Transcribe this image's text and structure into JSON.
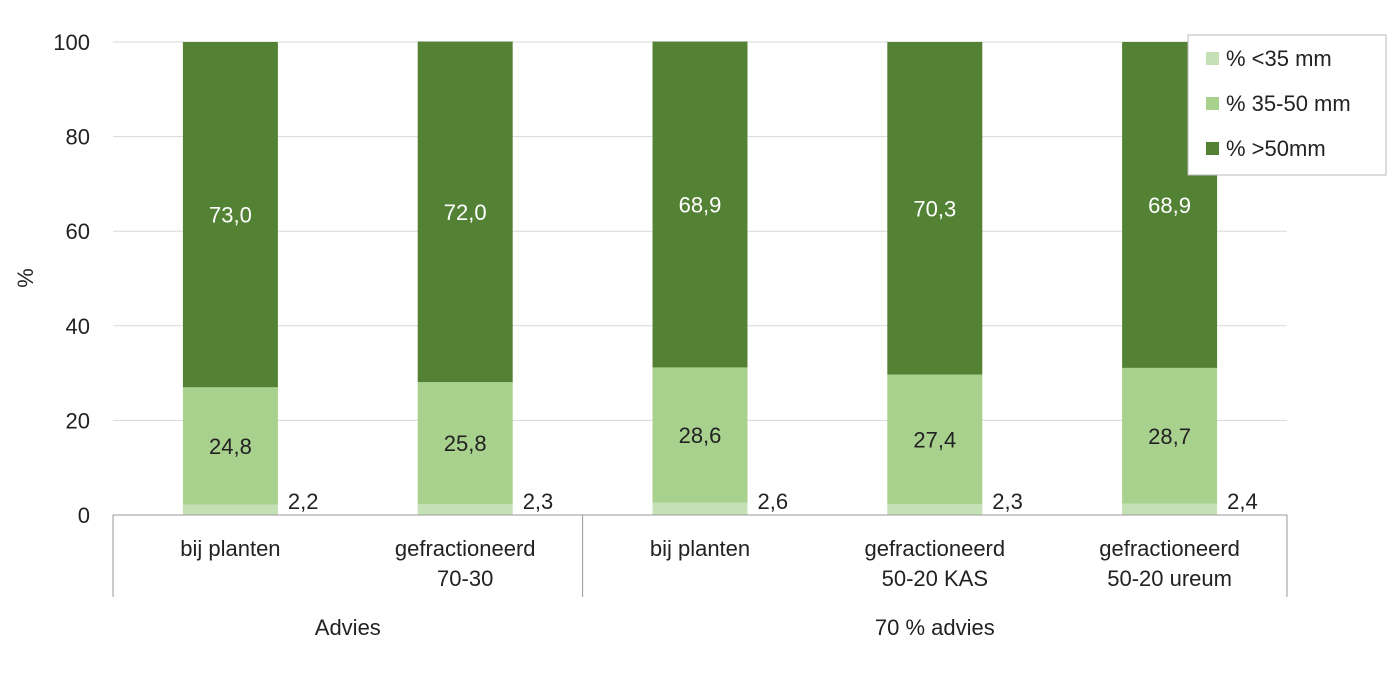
{
  "chart_data": {
    "type": "bar",
    "stacked": true,
    "ylabel": "%",
    "ylim": [
      0,
      100
    ],
    "yticks": [
      0,
      20,
      40,
      60,
      80,
      100
    ],
    "grid": true,
    "legend_position": "top-right",
    "categories": [
      {
        "label": [
          "bij planten"
        ],
        "group": "Advies"
      },
      {
        "label": [
          "gefractioneerd",
          "70-30"
        ],
        "group": "Advies"
      },
      {
        "label": [
          "bij planten"
        ],
        "group": "70 % advies"
      },
      {
        "label": [
          "gefractioneerd",
          "50-20  KAS"
        ],
        "group": "70 % advies"
      },
      {
        "label": [
          "gefractioneerd",
          "50-20  ureum"
        ],
        "group": "70 % advies"
      }
    ],
    "groups": [
      "Advies",
      "70 % advies"
    ],
    "series": [
      {
        "name": "% <35 mm",
        "color": "#c5e0b4",
        "values": [
          2.2,
          2.3,
          2.6,
          2.3,
          2.4
        ],
        "labels": [
          "2,2",
          "2,3",
          "2,6",
          "2,3",
          "2,4"
        ]
      },
      {
        "name": "% 35-50 mm",
        "color": "#a9d18e",
        "values": [
          24.8,
          25.8,
          28.6,
          27.4,
          28.7
        ],
        "labels": [
          "24,8",
          "25,8",
          "28,6",
          "27,4",
          "28,7"
        ]
      },
      {
        "name": "% >50mm",
        "color": "#548235",
        "values": [
          73.0,
          72.0,
          68.9,
          70.3,
          68.9
        ],
        "labels": [
          "73,0",
          "72,0",
          "68,9",
          "70,3",
          "68,9"
        ]
      }
    ]
  }
}
